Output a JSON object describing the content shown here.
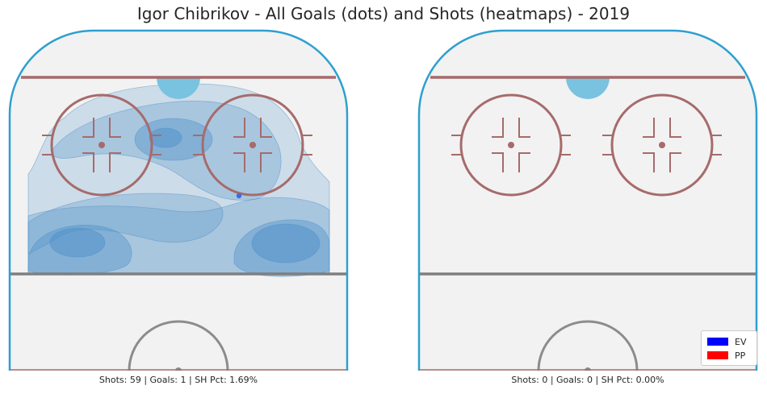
{
  "title": "Igor Chibrikov - All Goals (dots) and Shots (heatmaps) - 2019",
  "colors": {
    "ice": "#f2f2f2",
    "boards": "#2f9fd0",
    "red_line": "#a66b6b",
    "crease": "#7ac3e0",
    "blue_line": "#7f7f7f",
    "center_circle": "#8c8c8c",
    "heat": "#4a8fc7",
    "goal_dot": "#3a6fe0",
    "ev": "#0000ff",
    "pp": "#ff0000"
  },
  "panels": [
    {
      "id": "left",
      "caption": "Shots: 59 | Goals: 1 | SH Pct: 1.69%",
      "shots": 59,
      "goals": 1,
      "sh_pct": 1.69,
      "has_heatmap": true
    },
    {
      "id": "right",
      "caption": "Shots: 0 | Goals: 0 | SH Pct: 0.00%",
      "shots": 0,
      "goals": 0,
      "sh_pct": 0.0,
      "has_heatmap": false
    }
  ],
  "legend": [
    {
      "label": "EV",
      "color": "#0000ff"
    },
    {
      "label": "PP",
      "color": "#ff0000"
    }
  ],
  "chart_data": {
    "type": "heatmap",
    "title": "Igor Chibrikov - All Goals (dots) and Shots (heatmaps) - 2019",
    "legend": [
      "EV",
      "PP"
    ],
    "legend_position": "bottom-right",
    "grid": false
  }
}
